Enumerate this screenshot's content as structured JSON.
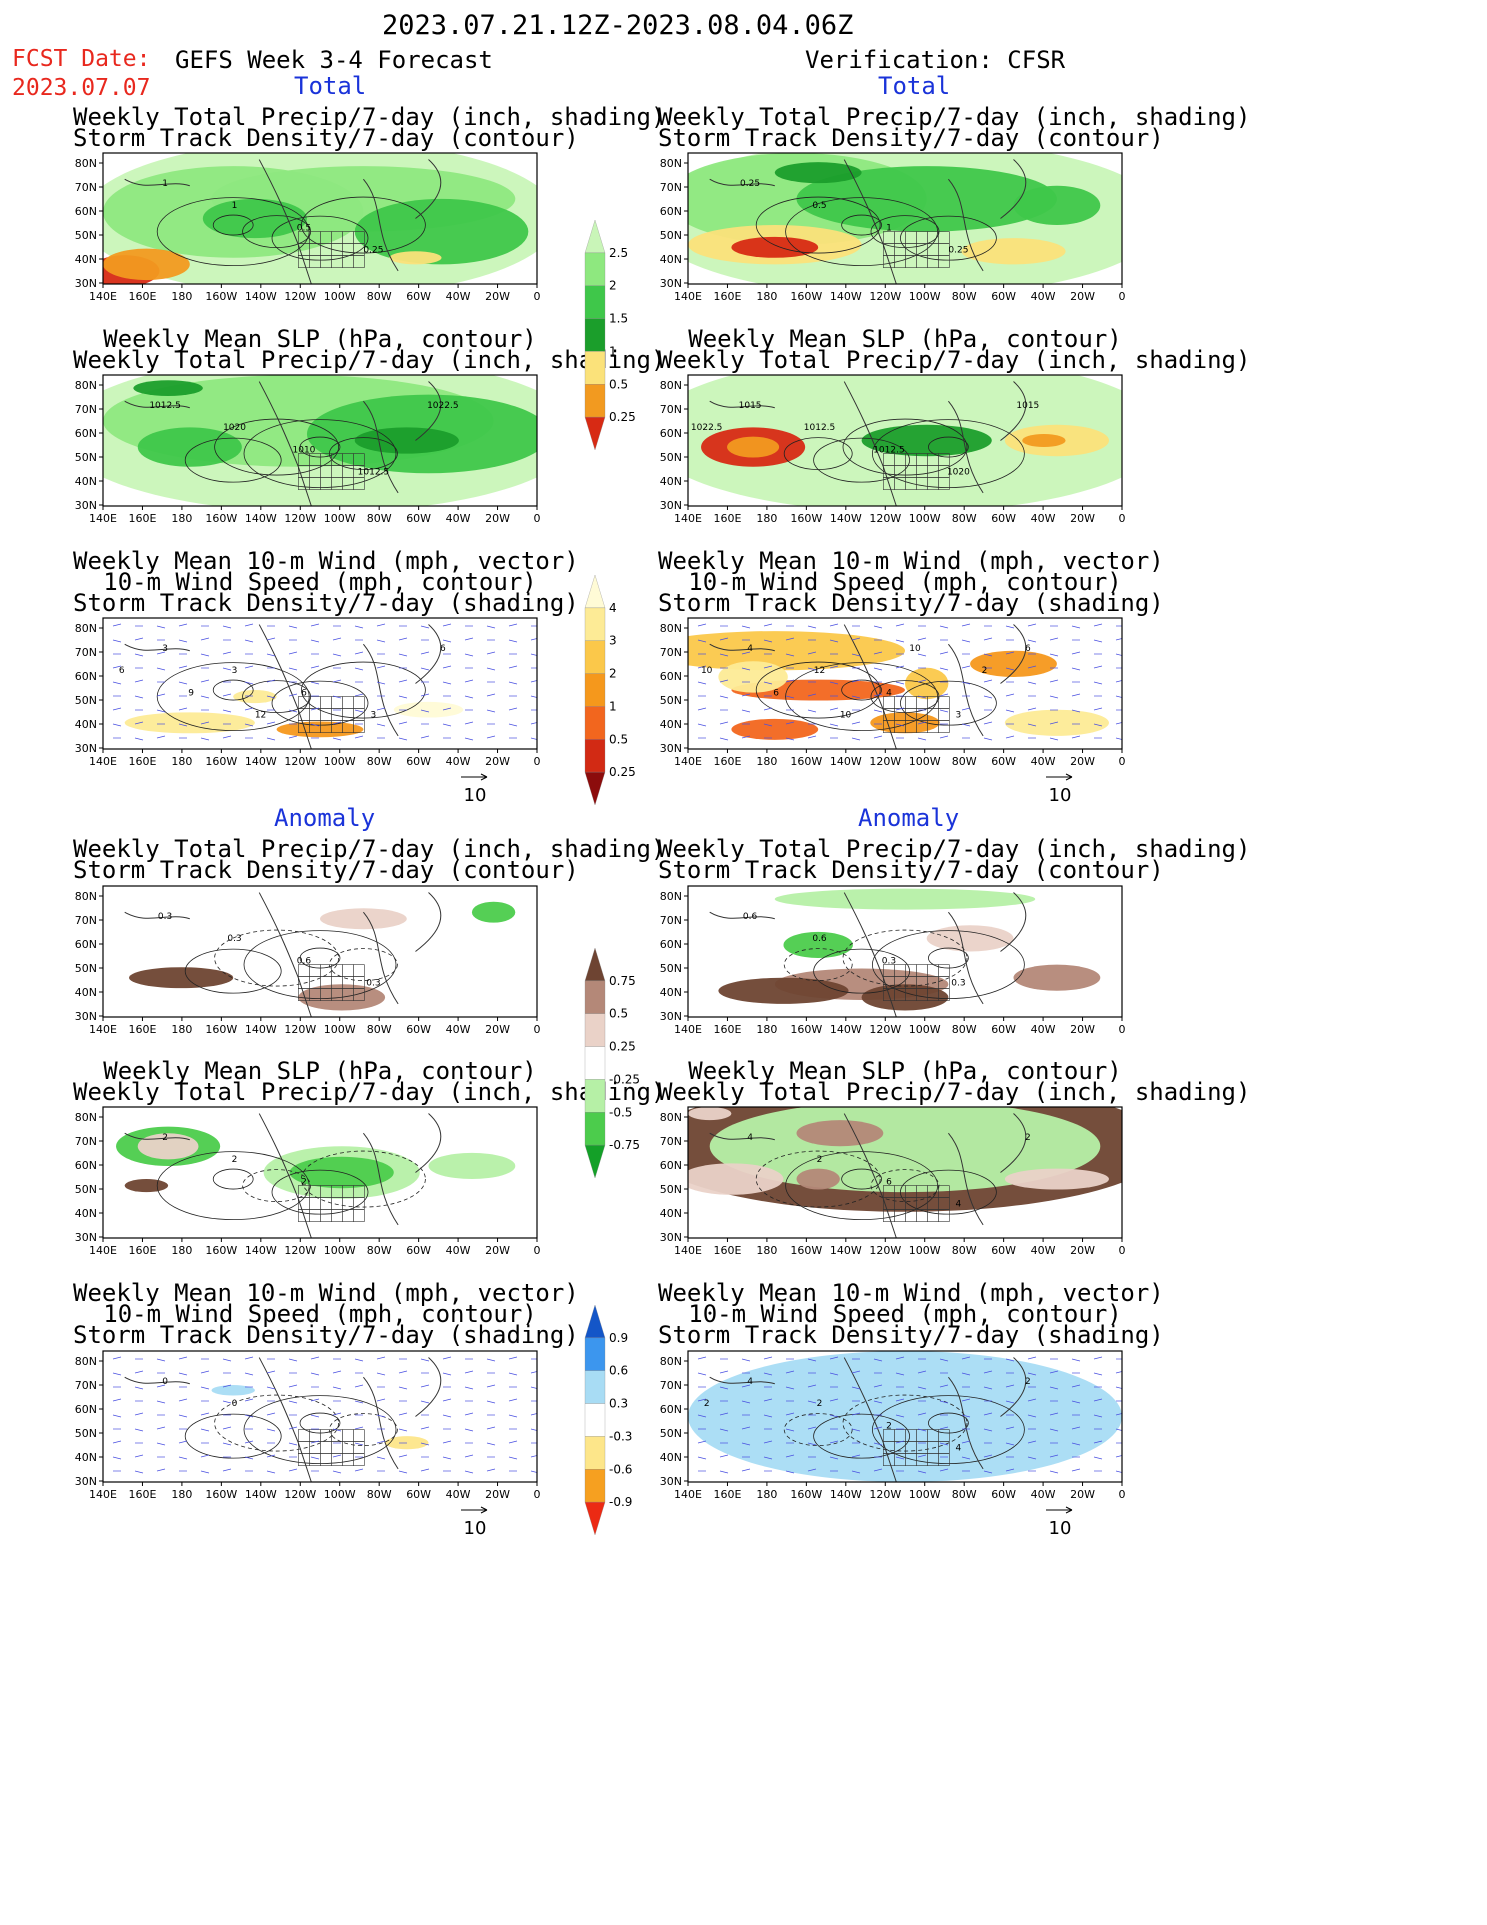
{
  "title": "2023.07.21.12Z-2023.08.04.06Z",
  "fcst_label": "FCST Date:",
  "fcst_date": "2023.07.07",
  "left_header": "GEFS Week 3-4 Forecast",
  "right_header": "Verification: CFSR",
  "section_total": "Total",
  "section_anomaly": "Anomaly",
  "lat_labels": [
    "80N",
    "70N",
    "60N",
    "50N",
    "40N",
    "30N"
  ],
  "lon_labels": [
    "140E",
    "160E",
    "180",
    "160W",
    "140W",
    "120W",
    "100W",
    "80W",
    "60W",
    "40W",
    "20W",
    "0"
  ],
  "vector_ref": "10",
  "panel_titles": {
    "precip_storm": [
      "Weekly Total Precip/7-day (inch, shading)",
      "Storm Track Density/7-day (contour)"
    ],
    "slp_precip": [
      "Weekly Mean SLP (hPa, contour)",
      "Weekly Total Precip/7-day (inch, shading)"
    ],
    "wind_storm": [
      "Weekly Mean 10-m Wind (mph, vector)",
      "10-m Wind Speed (mph, contour)",
      "Storm Track Density/7-day (shading)"
    ]
  },
  "colorbars": [
    {
      "name": "precip-total",
      "labels": [
        "2.5",
        "2",
        "1.5",
        "1",
        "0.5",
        "0.25"
      ],
      "colors": [
        "#d72a14",
        "#f29a20",
        "#fbe27a",
        "#1b9e2b",
        "#3fc74a",
        "#8ee87f",
        "#c9f5b8"
      ]
    },
    {
      "name": "storm-total",
      "labels": [
        "4",
        "3",
        "2",
        "1",
        "0.5",
        "0.25"
      ],
      "colors": [
        "#8c0c0c",
        "#d22a14",
        "#f2661e",
        "#f5981c",
        "#fbc84a",
        "#fdeb96",
        "#fffbd6"
      ]
    },
    {
      "name": "precip-anom",
      "labels": [
        "0.75",
        "0.5",
        "0.25",
        "-0.25",
        "-0.5",
        "-0.75"
      ],
      "colors": [
        "#14a028",
        "#4ccc4c",
        "#b6f0a6",
        "#ffffff",
        "#ead2c8",
        "#b48878",
        "#6e4432"
      ]
    },
    {
      "name": "storm-anom",
      "labels": [
        "0.9",
        "0.6",
        "0.3",
        "-0.3",
        "-0.6",
        "-0.9"
      ],
      "colors": [
        "#ec2a14",
        "#f6a020",
        "#fde68a",
        "#ffffff",
        "#a8dcf4",
        "#3c96ee",
        "#1456c8"
      ]
    }
  ],
  "contour_labels": {
    "p1": [
      "1",
      "1",
      "0.5",
      "0.25"
    ],
    "p2": [
      "0.25",
      "0.5",
      "1",
      "0.25"
    ],
    "p3": [
      "1012.5",
      "1020",
      "1010",
      "1012.5",
      "1022.5"
    ],
    "p4": [
      "1015",
      "1012.5",
      "1012.5",
      "1020",
      "1015",
      "1022.5"
    ],
    "p5": [
      "3",
      "3",
      "6",
      "3",
      "6",
      "6",
      "9",
      "12"
    ],
    "p6": [
      "4",
      "12",
      "4",
      "3",
      "6",
      "10",
      "6",
      "10",
      "10",
      "2"
    ],
    "p7": [
      "0.3",
      "0.3",
      "0.6",
      "0.3"
    ],
    "p8": [
      "0.6",
      "0.6",
      "0.3",
      "0.3"
    ],
    "p9": [
      "2",
      "2",
      "2"
    ],
    "p10": [
      "4",
      "2",
      "6",
      "4",
      "2"
    ],
    "p11": [
      "0",
      "0"
    ],
    "p12": [
      "4",
      "2",
      "2",
      "4",
      "2",
      "2"
    ]
  }
}
